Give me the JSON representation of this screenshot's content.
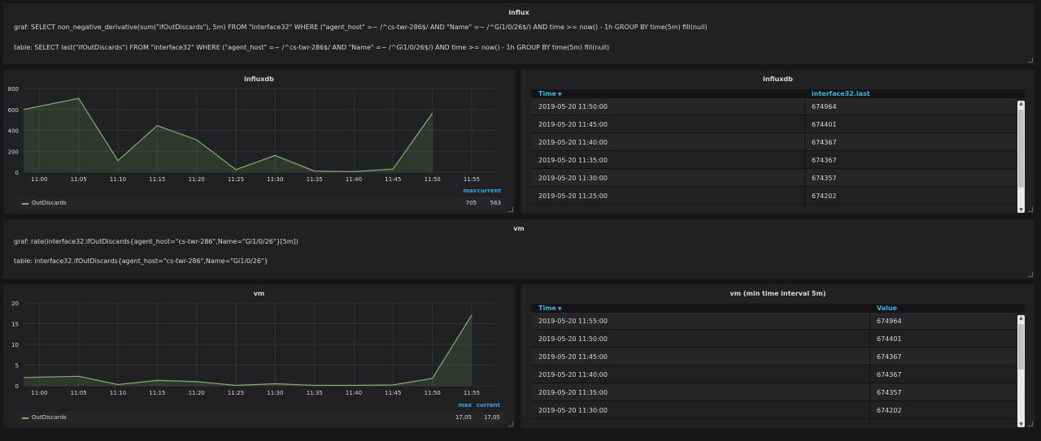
{
  "panels": {
    "influx_text": {
      "title": "influx",
      "line1": "graf: SELECT non_negative_derivative(sum(\"ifOutDiscards\"), 5m) FROM \"interface32\" WHERE (\"agent_host\" =~ /^cs-twr-286$/ AND \"Name\" =~ /^Gi1/0/26$/) AND time >= now() - 1h GROUP BY time(5m) fill(null)",
      "line2": "table: SELECT last(\"ifOutDiscards\") FROM \"interface32\" WHERE (\"agent_host\" =~ /^cs-twr-286$/ AND \"Name\" =~ /^Gi1/0/26$/) AND time >= now() - 1h GROUP BY time(5m) fill(null)"
    },
    "influx_graph": {
      "title": "influxdb",
      "legend": {
        "series": "OutDiscards",
        "max_label": "max",
        "current_label": "current",
        "max": "705",
        "current": "563"
      }
    },
    "influx_table": {
      "title": "influxdb",
      "col1": "Time",
      "col2": "interface32.last",
      "rows": [
        {
          "time": "2019-05-20 11:50:00",
          "value": "674964"
        },
        {
          "time": "2019-05-20 11:45:00",
          "value": "674401"
        },
        {
          "time": "2019-05-20 11:40:00",
          "value": "674367"
        },
        {
          "time": "2019-05-20 11:35:00",
          "value": "674367"
        },
        {
          "time": "2019-05-20 11:30:00",
          "value": "674357"
        },
        {
          "time": "2019-05-20 11:25:00",
          "value": "674202"
        }
      ]
    },
    "vm_text": {
      "title": "vm",
      "line1": "graf: rate(interface32.ifOutDiscards{agent_host=\"cs-twr-286\",Name=\"Gi1/0/26\"}[5m])",
      "line2": "table: interface32.ifOutDiscards{agent_host=\"cs-twr-286\",Name=\"Gi1/0/26\"}"
    },
    "vm_graph": {
      "title": "vm",
      "legend": {
        "series": "OutDiscards",
        "max_label": "max",
        "current_label": "current",
        "max": "17,05",
        "current": "17,05"
      }
    },
    "vm_table": {
      "title": "vm (min time interval 5m)",
      "col1": "Time",
      "col2": "Value",
      "rows": [
        {
          "time": "2019-05-20 11:55:00",
          "value": "674964"
        },
        {
          "time": "2019-05-20 11:50:00",
          "value": "674401"
        },
        {
          "time": "2019-05-20 11:45:00",
          "value": "674367"
        },
        {
          "time": "2019-05-20 11:40:00",
          "value": "674367"
        },
        {
          "time": "2019-05-20 11:35:00",
          "value": "674357"
        },
        {
          "time": "2019-05-20 11:30:00",
          "value": "674202"
        }
      ]
    }
  },
  "chart_data": [
    {
      "type": "area",
      "title": "influxdb",
      "x": [
        "10:58",
        "11:05",
        "11:10",
        "11:15",
        "11:20",
        "11:25",
        "11:30",
        "11:35",
        "11:40",
        "11:45",
        "11:50"
      ],
      "xticks": [
        "11:00",
        "11:05",
        "11:10",
        "11:15",
        "11:20",
        "11:25",
        "11:30",
        "11:35",
        "11:40",
        "11:45",
        "11:50",
        "11:55"
      ],
      "yticks": [
        "0",
        "200",
        "400",
        "600",
        "800"
      ],
      "ylim": [
        0,
        800
      ],
      "series": [
        {
          "name": "OutDiscards",
          "values": [
            600,
            705,
            110,
            445,
            310,
            25,
            160,
            10,
            5,
            30,
            563
          ]
        }
      ],
      "color": "#7eb26d",
      "grid": true
    },
    {
      "type": "area",
      "title": "vm",
      "x": [
        "10:58",
        "11:05",
        "11:10",
        "11:15",
        "11:20",
        "11:25",
        "11:30",
        "11:35",
        "11:40",
        "11:45",
        "11:50",
        "11:55"
      ],
      "xticks": [
        "11:00",
        "11:05",
        "11:10",
        "11:15",
        "11:20",
        "11:25",
        "11:30",
        "11:35",
        "11:40",
        "11:45",
        "11:50",
        "11:55"
      ],
      "yticks": [
        "0",
        "5",
        "10",
        "15",
        "20"
      ],
      "ylim": [
        0,
        20
      ],
      "series": [
        {
          "name": "OutDiscards",
          "values": [
            2.0,
            2.3,
            0.3,
            1.3,
            1.0,
            0.1,
            0.5,
            0.1,
            0.1,
            0.2,
            1.8,
            17.05
          ]
        }
      ],
      "color": "#7eb26d",
      "grid": true
    }
  ]
}
